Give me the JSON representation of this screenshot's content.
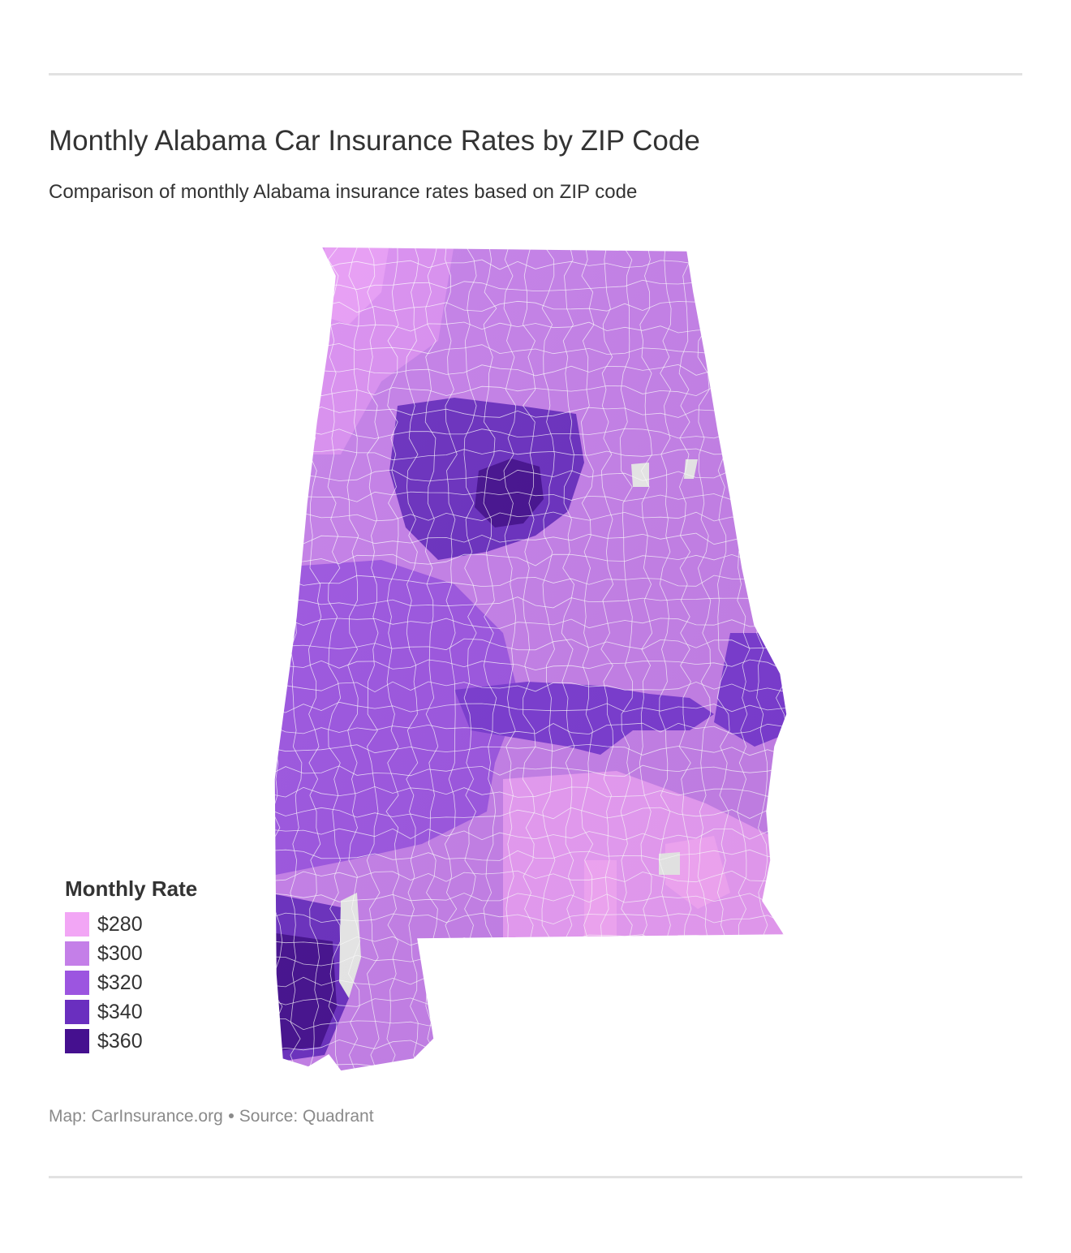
{
  "header": {
    "title": "Monthly Alabama Car Insurance Rates by ZIP Code",
    "subtitle": "Comparison of monthly Alabama insurance rates based on ZIP code"
  },
  "legend": {
    "title": "Monthly Rate",
    "items": [
      {
        "label": "$280",
        "color": "#f2a6f5"
      },
      {
        "label": "$300",
        "color": "#c47fe8"
      },
      {
        "label": "$320",
        "color": "#9c55e0"
      },
      {
        "label": "$340",
        "color": "#6a2fbf"
      },
      {
        "label": "$360",
        "color": "#45108f"
      }
    ]
  },
  "map": {
    "region": "Alabama",
    "no_data_color": "#e8e8e8",
    "boundary_color": "#ffffff",
    "rate_pattern": [
      {
        "area": "north",
        "rate": "$300"
      },
      {
        "area": "birmingham-core",
        "rate": "$360"
      },
      {
        "area": "birmingham-metro",
        "rate": "$340"
      },
      {
        "area": "central-west",
        "rate": "$320"
      },
      {
        "area": "east-central",
        "rate": "$300"
      },
      {
        "area": "southeast",
        "rate": "$280"
      },
      {
        "area": "southwest-mobile",
        "rate": "$360"
      },
      {
        "area": "baldwin",
        "rate": "$300"
      }
    ]
  },
  "footer": {
    "map_credit": "Map: CarInsurance.org",
    "source": "Source: Quadrant"
  }
}
